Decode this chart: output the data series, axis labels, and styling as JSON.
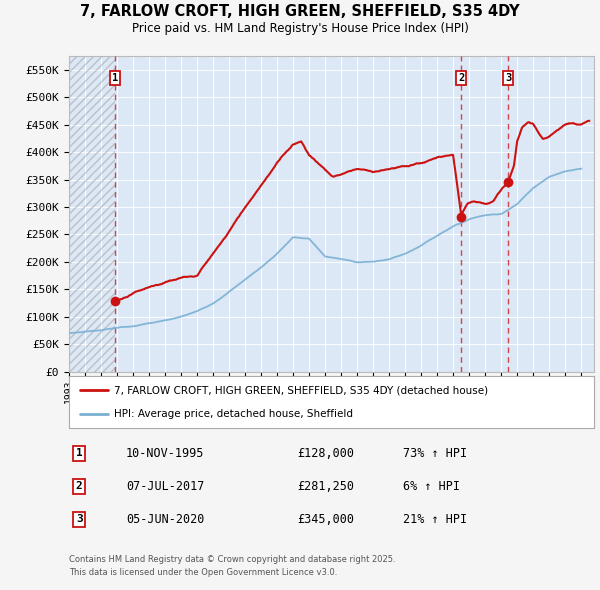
{
  "title": "7, FARLOW CROFT, HIGH GREEN, SHEFFIELD, S35 4DY",
  "subtitle": "Price paid vs. HM Land Registry's House Price Index (HPI)",
  "ylim": [
    0,
    575000
  ],
  "yticks": [
    0,
    50000,
    100000,
    150000,
    200000,
    250000,
    300000,
    350000,
    400000,
    450000,
    500000,
    550000
  ],
  "ytick_labels": [
    "£0",
    "£50K",
    "£100K",
    "£150K",
    "£200K",
    "£250K",
    "£300K",
    "£350K",
    "£400K",
    "£450K",
    "£500K",
    "£550K"
  ],
  "xlim_start": 1993.0,
  "xlim_end": 2025.8,
  "background_color": "#f5f5f5",
  "plot_bg_color": "#dce8f5",
  "hatch_end_year": 1995.88,
  "sale1_year": 1995.88,
  "sale1_price": 128000,
  "sale2_year": 2017.52,
  "sale2_price": 281250,
  "sale3_year": 2020.43,
  "sale3_price": 345000,
  "legend_line1": "7, FARLOW CROFT, HIGH GREEN, SHEFFIELD, S35 4DY (detached house)",
  "legend_line2": "HPI: Average price, detached house, Sheffield",
  "footer1": "Contains HM Land Registry data © Crown copyright and database right 2025.",
  "footer2": "This data is licensed under the Open Government Licence v3.0.",
  "table_rows": [
    {
      "num": "1",
      "date": "10-NOV-1995",
      "price": "£128,000",
      "hpi": "73% ↑ HPI"
    },
    {
      "num": "2",
      "date": "07-JUL-2017",
      "price": "£281,250",
      "hpi": "6% ↑ HPI"
    },
    {
      "num": "3",
      "date": "05-JUN-2020",
      "price": "£345,000",
      "hpi": "21% ↑ HPI"
    }
  ],
  "hpi_years": [
    1993,
    1994,
    1995,
    1996,
    1997,
    1998,
    1999,
    2000,
    2001,
    2002,
    2003,
    2004,
    2005,
    2006,
    2007,
    2008,
    2009,
    2010,
    2011,
    2012,
    2013,
    2014,
    2015,
    2016,
    2017,
    2018,
    2019,
    2020,
    2021,
    2022,
    2023,
    2024,
    2025
  ],
  "hpi_prices": [
    70000,
    73000,
    76000,
    80000,
    83000,
    88000,
    93000,
    100000,
    110000,
    125000,
    145000,
    168000,
    190000,
    215000,
    245000,
    242000,
    210000,
    205000,
    200000,
    200000,
    205000,
    215000,
    230000,
    248000,
    265000,
    278000,
    285000,
    288000,
    305000,
    335000,
    355000,
    365000,
    370000
  ],
  "prop_years": [
    1995.88,
    1997,
    1998,
    1999,
    2000,
    2001,
    2002,
    2003,
    2004,
    2005,
    2006,
    2007,
    2007.5,
    2008,
    2009,
    2009.5,
    2010,
    2011,
    2012,
    2013,
    2014,
    2015,
    2016,
    2017,
    2017.52,
    2017.6,
    2017.9,
    2018.2,
    2018.5,
    2019.0,
    2019.5,
    2020.0,
    2020.43,
    2020.8,
    2021.0,
    2021.3,
    2021.7,
    2022.0,
    2022.3,
    2022.6,
    2023.0,
    2023.5,
    2024.0,
    2024.5,
    2025.0,
    2025.5
  ],
  "prop_prices": [
    128000,
    143000,
    155000,
    162000,
    170000,
    175000,
    215000,
    255000,
    300000,
    340000,
    380000,
    415000,
    420000,
    395000,
    368000,
    355000,
    360000,
    370000,
    365000,
    368000,
    375000,
    380000,
    390000,
    395000,
    281250,
    290000,
    305000,
    310000,
    308000,
    305000,
    310000,
    330000,
    345000,
    375000,
    420000,
    445000,
    455000,
    450000,
    435000,
    425000,
    430000,
    440000,
    450000,
    455000,
    450000,
    455000
  ]
}
